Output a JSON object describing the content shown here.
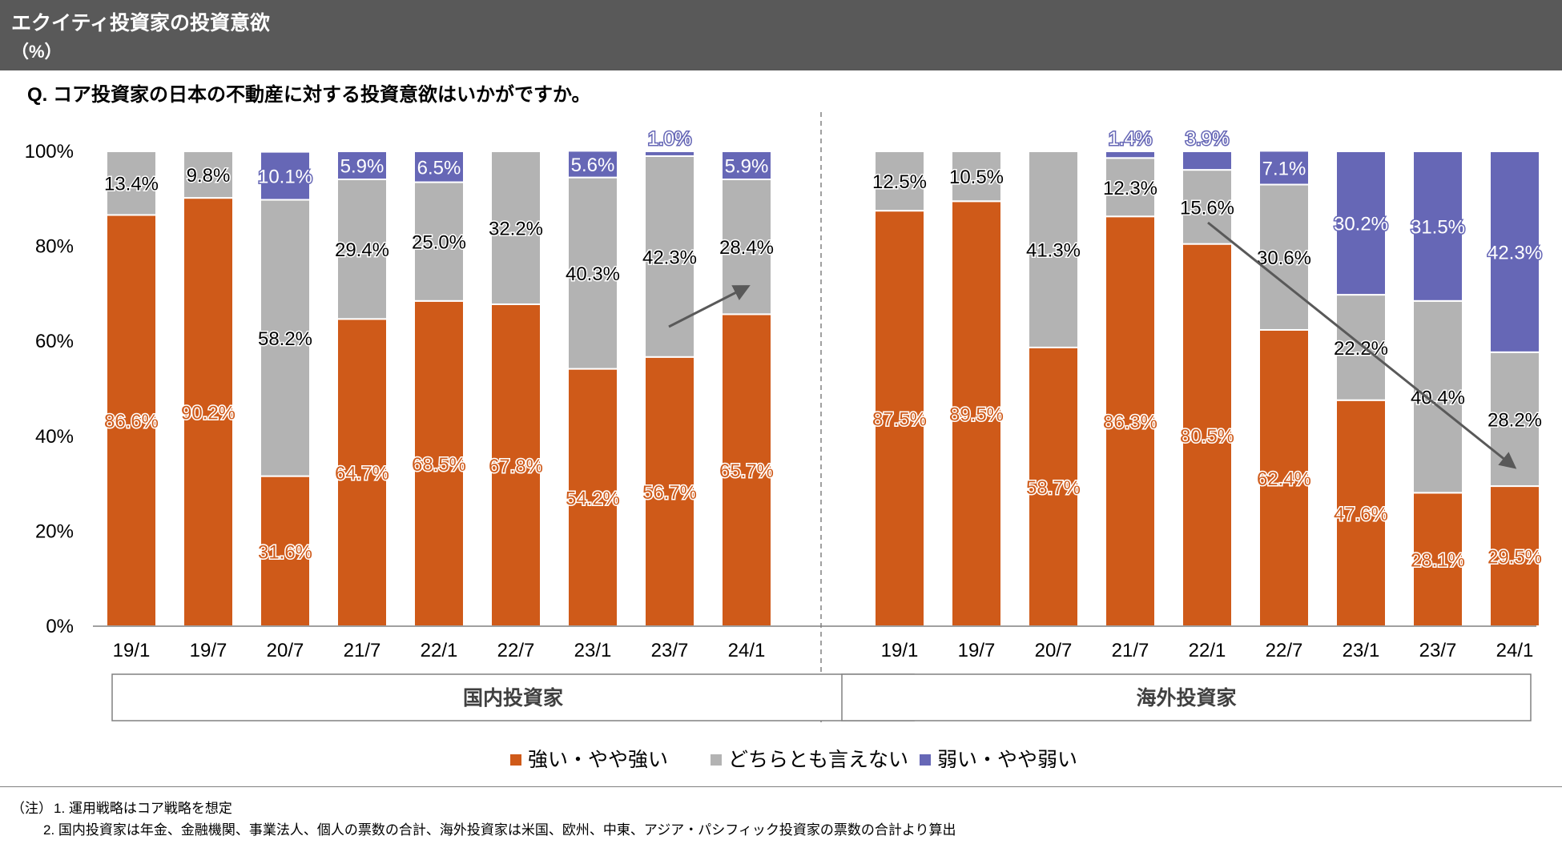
{
  "header": {
    "title": "エクイティ投資家の投資意欲",
    "unit": "（%）"
  },
  "question": "Q.  コア投資家の日本の不動産に対する投資意欲はいかがですか。",
  "notes": {
    "prefix": "（注）",
    "items": [
      "1.  運用戦略はコア戦略を想定",
      "2.  国内投資家は年金、金融機関、事業法人、個人の票数の合計、海外投資家は米国、欧州、中東、アジア・パシフィック投資家の票数の合計より算出"
    ]
  },
  "chart_data": {
    "type": "bar",
    "stacked": true,
    "percent": true,
    "ylim": [
      0,
      100
    ],
    "yticks": [
      "0%",
      "20%",
      "40%",
      "60%",
      "80%",
      "100%"
    ],
    "legend_position": "bottom",
    "legend": [
      "強い・やや強い",
      "どちらとも言えない",
      "弱い・やや弱い"
    ],
    "colors": [
      "#cf5a19",
      "#b3b3b3",
      "#6667b6"
    ],
    "groups": [
      {
        "name": "国内投資家",
        "categories": [
          "19/1",
          "19/7",
          "20/7",
          "21/7",
          "22/1",
          "22/7",
          "23/1",
          "23/7",
          "24/1"
        ],
        "series": [
          {
            "name": "強い・やや強い",
            "values": [
              86.6,
              90.2,
              31.6,
              64.7,
              68.5,
              67.8,
              54.2,
              56.7,
              65.7
            ]
          },
          {
            "name": "どちらとも言えない",
            "values": [
              13.4,
              9.8,
              58.2,
              29.4,
              25.0,
              32.2,
              40.3,
              42.3,
              28.4
            ]
          },
          {
            "name": "弱い・やや弱い",
            "values": [
              0,
              0,
              10.1,
              5.9,
              6.5,
              0,
              5.6,
              1.0,
              5.9
            ]
          }
        ],
        "labels": [
          [
            "86.6%",
            "90.2%",
            "31.6%",
            "64.7%",
            "68.5%",
            "67.8%",
            "54.2%",
            "56.7%",
            "65.7%"
          ],
          [
            "13.4%",
            "9.8%",
            "58.2%",
            "29.4%",
            "25.0%",
            "32.2%",
            "40.3%",
            "42.3%",
            "28.4%"
          ],
          [
            "",
            "",
            "10.1%",
            "5.9%",
            "6.5%",
            "",
            "5.6%",
            "1.0%",
            "5.9%"
          ]
        ],
        "trend": "up"
      },
      {
        "name": "海外投資家",
        "categories": [
          "19/1",
          "19/7",
          "20/7",
          "21/7",
          "22/1",
          "22/7",
          "23/1",
          "23/7",
          "24/1"
        ],
        "series": [
          {
            "name": "強い・やや強い",
            "values": [
              87.5,
              89.5,
              58.7,
              86.3,
              80.5,
              62.4,
              47.6,
              28.1,
              29.5
            ]
          },
          {
            "name": "どちらとも言えない",
            "values": [
              12.5,
              10.5,
              41.3,
              12.3,
              15.6,
              30.6,
              22.2,
              40.4,
              28.2
            ]
          },
          {
            "name": "弱い・やや弱い",
            "values": [
              0,
              0,
              0,
              1.4,
              3.9,
              7.1,
              30.2,
              31.5,
              42.3
            ]
          }
        ],
        "labels": [
          [
            "87.5%",
            "89.5%",
            "58.7%",
            "86.3%",
            "80.5%",
            "62.4%",
            "47.6%",
            "28.1%",
            "29.5%"
          ],
          [
            "12.5%",
            "10.5%",
            "41.3%",
            "12.3%",
            "15.6%",
            "30.6%",
            "22.2%",
            "40.4%",
            "28.2%"
          ],
          [
            "",
            "",
            "",
            "1.4%",
            "3.9%",
            "7.1%",
            "30.2%",
            "31.5%",
            "42.3%"
          ]
        ],
        "trend": "down"
      }
    ]
  }
}
